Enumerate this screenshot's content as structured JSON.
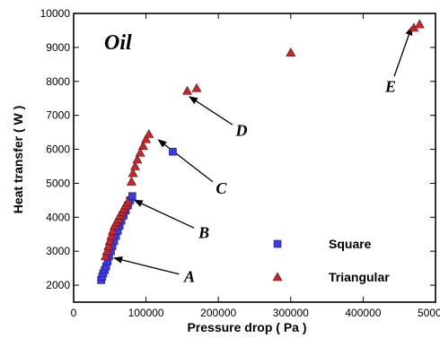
{
  "chart_data": {
    "type": "scatter",
    "title": "Oil",
    "xlabel": "Pressure drop ( Pa )",
    "ylabel": "Heat transfer ( W )",
    "xlim": [
      0,
      500000
    ],
    "ylim": [
      1500,
      10000
    ],
    "xticks": [
      0,
      100000,
      200000,
      300000,
      400000,
      500000
    ],
    "yticks": [
      2000,
      3000,
      4000,
      5000,
      6000,
      7000,
      8000,
      9000,
      10000
    ],
    "grid": false,
    "legend_position": "bottom-right",
    "series": [
      {
        "name": "Square",
        "marker": "square",
        "color": "#3a3ae0",
        "points": [
          [
            38000,
            2150
          ],
          [
            39500,
            2250
          ],
          [
            41000,
            2350
          ],
          [
            43000,
            2450
          ],
          [
            45000,
            2550
          ],
          [
            47000,
            2700
          ],
          [
            49000,
            2850
          ],
          [
            51500,
            3000
          ],
          [
            53500,
            3150
          ],
          [
            56000,
            3300
          ],
          [
            58500,
            3450
          ],
          [
            61000,
            3600
          ],
          [
            63500,
            3750
          ],
          [
            66000,
            3900
          ],
          [
            69000,
            4050
          ],
          [
            72000,
            4200
          ],
          [
            75000,
            4350
          ],
          [
            78000,
            4500
          ],
          [
            81000,
            4620
          ],
          [
            137000,
            5930
          ]
        ]
      },
      {
        "name": "Triangular",
        "marker": "triangle",
        "color": "#c0282d",
        "points": [
          [
            44000,
            2850
          ],
          [
            46000,
            3000
          ],
          [
            48000,
            3150
          ],
          [
            50000,
            3300
          ],
          [
            52000,
            3450
          ],
          [
            54000,
            3600
          ],
          [
            56500,
            3750
          ],
          [
            59000,
            3850
          ],
          [
            61500,
            3950
          ],
          [
            64000,
            4050
          ],
          [
            66500,
            4150
          ],
          [
            69000,
            4250
          ],
          [
            72000,
            4350
          ],
          [
            75000,
            4450
          ],
          [
            80000,
            5050
          ],
          [
            82000,
            5300
          ],
          [
            85000,
            5500
          ],
          [
            88000,
            5700
          ],
          [
            92000,
            5900
          ],
          [
            96000,
            6100
          ],
          [
            100000,
            6300
          ],
          [
            104000,
            6450
          ],
          [
            157000,
            7720
          ],
          [
            170000,
            7800
          ],
          [
            300000,
            8850
          ],
          [
            470000,
            9580
          ],
          [
            478000,
            9680
          ]
        ]
      }
    ],
    "annotations": [
      {
        "label": "A",
        "text_at": [
          160000,
          2250
        ],
        "arrow_to": [
          56000,
          2800
        ]
      },
      {
        "label": "B",
        "text_at": [
          180000,
          3550
        ],
        "arrow_to": [
          84000,
          4500
        ]
      },
      {
        "label": "C",
        "text_at": [
          204000,
          4850
        ],
        "arrow_to": [
          117000,
          6280
        ]
      },
      {
        "label": "D",
        "text_at": [
          232000,
          6550
        ],
        "arrow_to": [
          160000,
          7550
        ]
      },
      {
        "label": "E",
        "text_at": [
          438000,
          7850
        ],
        "arrow_to": [
          467000,
          9600
        ]
      }
    ]
  }
}
